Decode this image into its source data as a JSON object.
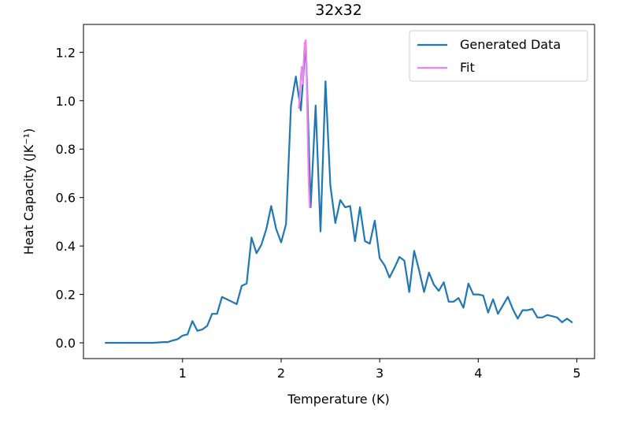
{
  "chart_data": {
    "type": "line",
    "title": "32x32",
    "xlabel": "Temperature (K)",
    "ylabel": "Heat Capacity (JK⁻¹)",
    "xlim": [
      -0.005,
      5.18
    ],
    "ylim": [
      -0.065,
      1.315
    ],
    "xticks": [
      1,
      2,
      3,
      4,
      5
    ],
    "yticks": [
      0.0,
      0.2,
      0.4,
      0.6,
      0.8,
      1.0,
      1.2
    ],
    "xtick_labels": [
      "1",
      "2",
      "3",
      "4",
      "5"
    ],
    "ytick_labels": [
      "0.0",
      "0.2",
      "0.4",
      "0.6",
      "0.8",
      "1.0",
      "1.2"
    ],
    "legend_position": "top-right",
    "grid": false,
    "series": [
      {
        "name": "Generated Data",
        "color": "#1f77b4",
        "points": [
          [
            0.22,
            0.0
          ],
          [
            0.3,
            0.0
          ],
          [
            0.4,
            0.0
          ],
          [
            0.5,
            0.0
          ],
          [
            0.6,
            0.0
          ],
          [
            0.7,
            0.0
          ],
          [
            0.8,
            0.003
          ],
          [
            0.85,
            0.003
          ],
          [
            0.9,
            0.01
          ],
          [
            0.95,
            0.015
          ],
          [
            1.0,
            0.03
          ],
          [
            1.05,
            0.035
          ],
          [
            1.1,
            0.09
          ],
          [
            1.15,
            0.05
          ],
          [
            1.2,
            0.055
          ],
          [
            1.25,
            0.07
          ],
          [
            1.3,
            0.12
          ],
          [
            1.35,
            0.12
          ],
          [
            1.4,
            0.19
          ],
          [
            1.45,
            0.18
          ],
          [
            1.5,
            0.17
          ],
          [
            1.55,
            0.16
          ],
          [
            1.6,
            0.235
          ],
          [
            1.65,
            0.245
          ],
          [
            1.7,
            0.435
          ],
          [
            1.75,
            0.37
          ],
          [
            1.8,
            0.405
          ],
          [
            1.85,
            0.47
          ],
          [
            1.9,
            0.565
          ],
          [
            1.95,
            0.47
          ],
          [
            2.0,
            0.415
          ],
          [
            2.05,
            0.49
          ],
          [
            2.1,
            0.98
          ],
          [
            2.15,
            1.1
          ],
          [
            2.2,
            0.96
          ],
          [
            2.25,
            1.24
          ],
          [
            2.3,
            0.56
          ],
          [
            2.35,
            0.98
          ],
          [
            2.4,
            0.46
          ],
          [
            2.45,
            1.08
          ],
          [
            2.5,
            0.65
          ],
          [
            2.55,
            0.495
          ],
          [
            2.6,
            0.59
          ],
          [
            2.65,
            0.56
          ],
          [
            2.7,
            0.565
          ],
          [
            2.75,
            0.42
          ],
          [
            2.8,
            0.56
          ],
          [
            2.85,
            0.42
          ],
          [
            2.9,
            0.41
          ],
          [
            2.95,
            0.505
          ],
          [
            3.0,
            0.35
          ],
          [
            3.05,
            0.32
          ],
          [
            3.1,
            0.27
          ],
          [
            3.15,
            0.31
          ],
          [
            3.2,
            0.355
          ],
          [
            3.25,
            0.34
          ],
          [
            3.3,
            0.21
          ],
          [
            3.35,
            0.38
          ],
          [
            3.4,
            0.3
          ],
          [
            3.45,
            0.21
          ],
          [
            3.5,
            0.29
          ],
          [
            3.55,
            0.24
          ],
          [
            3.6,
            0.215
          ],
          [
            3.65,
            0.25
          ],
          [
            3.7,
            0.17
          ],
          [
            3.75,
            0.17
          ],
          [
            3.8,
            0.185
          ],
          [
            3.85,
            0.145
          ],
          [
            3.9,
            0.245
          ],
          [
            3.95,
            0.2
          ],
          [
            4.0,
            0.2
          ],
          [
            4.05,
            0.195
          ],
          [
            4.1,
            0.125
          ],
          [
            4.15,
            0.18
          ],
          [
            4.2,
            0.12
          ],
          [
            4.25,
            0.155
          ],
          [
            4.3,
            0.19
          ],
          [
            4.35,
            0.14
          ],
          [
            4.4,
            0.1
          ],
          [
            4.45,
            0.135
          ],
          [
            4.5,
            0.135
          ],
          [
            4.55,
            0.14
          ],
          [
            4.6,
            0.105
          ],
          [
            4.65,
            0.105
          ],
          [
            4.7,
            0.115
          ],
          [
            4.75,
            0.11
          ],
          [
            4.8,
            0.105
          ],
          [
            4.85,
            0.085
          ],
          [
            4.9,
            0.1
          ],
          [
            4.95,
            0.085
          ]
        ]
      },
      {
        "name": "Fit",
        "color": "#ee82ee",
        "points": [
          [
            2.18,
            0.97
          ],
          [
            2.19,
            1.02
          ],
          [
            2.2,
            1.1
          ],
          [
            2.21,
            1.14
          ],
          [
            2.22,
            1.07
          ],
          [
            2.23,
            1.17
          ],
          [
            2.24,
            1.24
          ],
          [
            2.25,
            1.25
          ],
          [
            2.26,
            1.1
          ],
          [
            2.27,
            0.85
          ],
          [
            2.28,
            0.66
          ],
          [
            2.29,
            0.56
          ]
        ]
      }
    ]
  }
}
